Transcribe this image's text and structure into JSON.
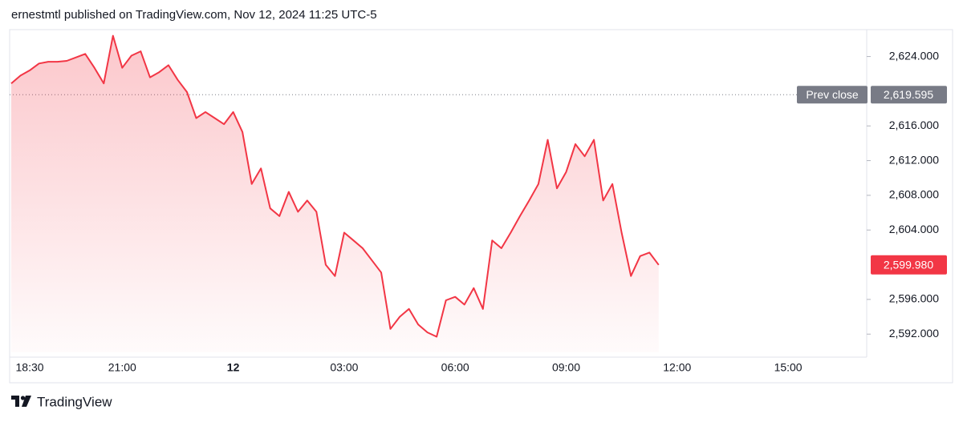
{
  "header": "ernestmtl published on TradingView.com, Nov 12, 2024 11:25 UTC-5",
  "footer": "TradingView",
  "chart_data": {
    "type": "area",
    "color": "#f23645",
    "categories": [
      null,
      null,
      "18:30",
      null,
      null,
      null,
      null,
      null,
      null,
      null,
      null,
      null,
      "21:00",
      null,
      null,
      null,
      null,
      null,
      null,
      null,
      null,
      null,
      null,
      null,
      "12",
      null,
      null,
      null,
      null,
      null,
      null,
      null,
      null,
      null,
      null,
      null,
      "03:00",
      null,
      null,
      null,
      null,
      null,
      null,
      null,
      null,
      null,
      null,
      null,
      "06:00",
      null,
      null,
      null,
      null,
      null,
      null,
      null,
      null,
      null,
      null,
      null,
      "09:00",
      null,
      null,
      null,
      null,
      null,
      null,
      null,
      null,
      null,
      null,
      null,
      "12:00",
      null,
      null,
      null,
      null,
      null,
      null,
      null,
      null,
      null,
      null,
      null,
      "15:00",
      null,
      null,
      null,
      null,
      null,
      null,
      null,
      null
    ],
    "values": [
      2620.9,
      2621.8,
      2622.4,
      2623.2,
      2623.4,
      2623.4,
      2623.5,
      2623.9,
      2624.3,
      2622.7,
      2620.9,
      2626.4,
      2622.7,
      2624.1,
      2624.6,
      2621.6,
      2622.2,
      2623.0,
      2621.3,
      2619.9,
      2616.9,
      2617.6,
      2616.9,
      2616.2,
      2617.6,
      2615.3,
      2609.3,
      2611.1,
      2606.5,
      2605.6,
      2608.4,
      2606.1,
      2607.4,
      2606.1,
      2600.0,
      2598.7,
      2603.7,
      2602.8,
      2601.9,
      2600.5,
      2599.1,
      2592.6,
      2594.0,
      2594.9,
      2593.1,
      2592.2,
      2591.7,
      2595.9,
      2596.3,
      2595.4,
      2597.3,
      2594.9,
      2602.8,
      2601.9,
      2603.7,
      2605.6,
      2607.4,
      2609.3,
      2614.4,
      2608.8,
      2610.7,
      2613.9,
      2612.5,
      2614.4,
      2607.4,
      2609.3,
      2603.7,
      2598.7,
      2601.0,
      2601.4,
      2599.98,
      null,
      null,
      null,
      null,
      null,
      null,
      null,
      null,
      null,
      null,
      null,
      null,
      null,
      null,
      null,
      null,
      null,
      null,
      null,
      null,
      null,
      null
    ],
    "value_labels": [
      null,
      null,
      null,
      null,
      null,
      null,
      null,
      null,
      null,
      null,
      null,
      null,
      null,
      null,
      null,
      null,
      null,
      null,
      null,
      null,
      null,
      null,
      null,
      null,
      null,
      null,
      null,
      null,
      null,
      null,
      null,
      null,
      null,
      null,
      null,
      null,
      null,
      null,
      null,
      null,
      null,
      null,
      null,
      null,
      null,
      null,
      null,
      null,
      null,
      null,
      null,
      null,
      null,
      null,
      null,
      null,
      null,
      null,
      null,
      null,
      null,
      null,
      null,
      null,
      null,
      null,
      null,
      null,
      null,
      null,
      "2,599.980",
      null,
      null,
      null,
      null,
      null,
      null,
      null,
      null,
      null,
      null,
      null,
      null,
      null,
      null,
      null,
      null,
      null,
      null,
      null,
      null,
      null,
      null
    ],
    "prev_close": {
      "name": "Prev close",
      "value": 2619.595,
      "label": "2,619.595",
      "color": "#787b86"
    },
    "ylim": [
      2589.9,
      2627.1
    ],
    "yticks": [
      {
        "value": 2592,
        "label": "2,592.000"
      },
      {
        "value": 2596,
        "label": "2,596.000"
      },
      {
        "value": 2604,
        "label": "2,604.000"
      },
      {
        "value": 2608,
        "label": "2,608.000"
      },
      {
        "value": 2612,
        "label": "2,612.000"
      },
      {
        "value": 2616,
        "label": "2,616.000"
      },
      {
        "value": 2624,
        "label": "2,624.000"
      }
    ]
  }
}
